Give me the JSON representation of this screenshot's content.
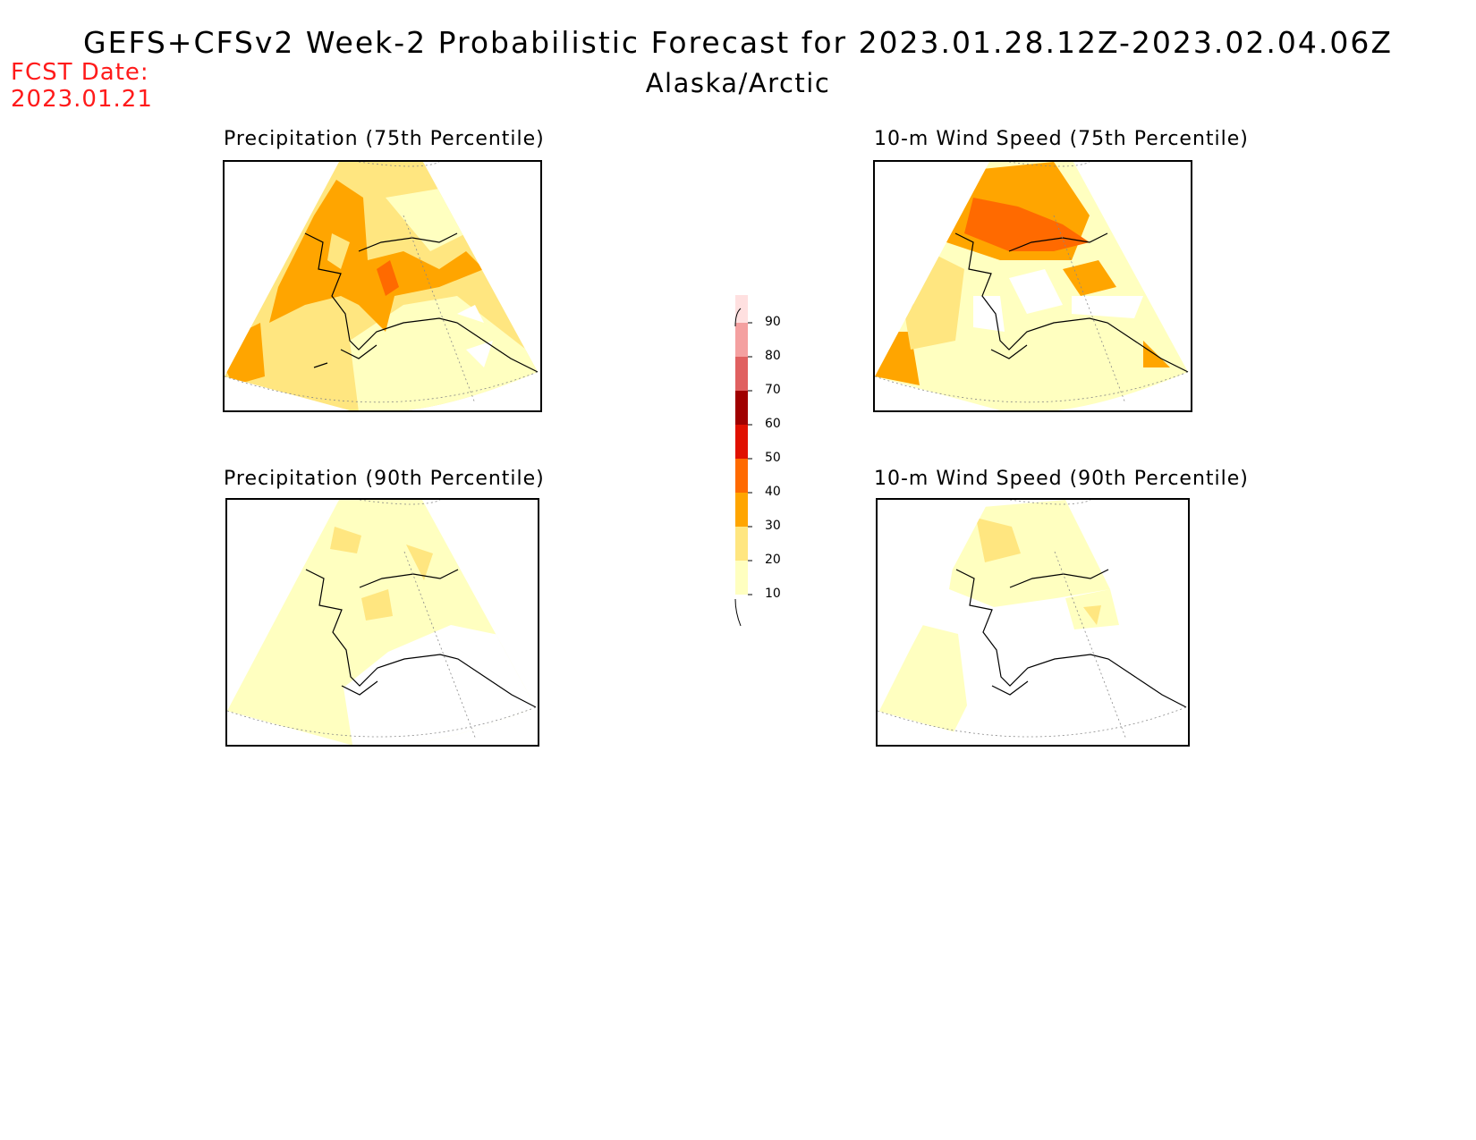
{
  "header": {
    "title": "GEFS+CFSv2 Week-2 Probabilistic Forecast for 2023.01.28.12Z-2023.02.04.06Z",
    "subtitle": "Alaska/Arctic",
    "fcst_label": "FCST Date:",
    "fcst_date": "2023.01.21"
  },
  "panels": [
    {
      "id": "precip-75",
      "title": "Precipitation (75th Percentile)"
    },
    {
      "id": "wind-75",
      "title": "10-m Wind Speed (75th Percentile)"
    },
    {
      "id": "precip-90",
      "title": "Precipitation (90th Percentile)"
    },
    {
      "id": "wind-90",
      "title": "10-m Wind Speed (90th Percentile)"
    }
  ],
  "colorbar": {
    "levels": [
      {
        "label": "10",
        "color": "#ffffc0"
      },
      {
        "label": "20",
        "color": "#ffe680"
      },
      {
        "label": "30",
        "color": "#ffa500"
      },
      {
        "label": "40",
        "color": "#ff6a00"
      },
      {
        "label": "50",
        "color": "#e01000"
      },
      {
        "label": "60",
        "color": "#a00000"
      },
      {
        "label": "70",
        "color": "#e06060"
      },
      {
        "label": "80",
        "color": "#f4a0a0"
      },
      {
        "label": "90",
        "color": "#ffe0e0"
      }
    ]
  }
}
